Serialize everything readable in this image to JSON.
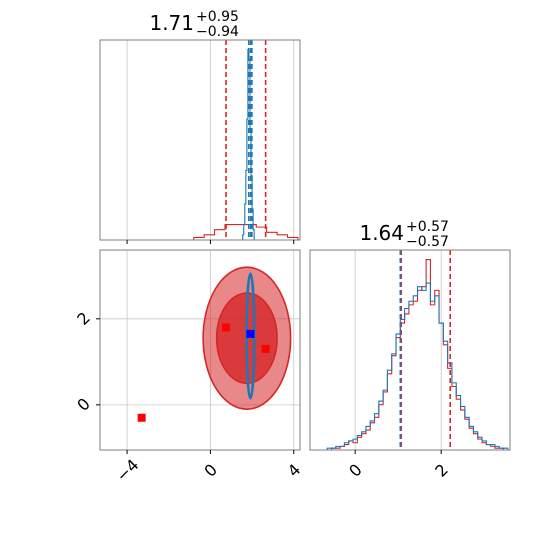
{
  "colors": {
    "series_a": "#d62728",
    "series_b": "#1f77b4",
    "marker_a": "#ff0000",
    "marker_b": "#0000ff",
    "grid": "#c8c8c8",
    "axis": "#7f7f7f"
  },
  "chart_data": [
    {
      "type": "histogram",
      "panel": "top-left marginal",
      "grid": true,
      "xlim": [
        -5.3,
        4.3
      ],
      "x_ticks": [
        -4,
        0,
        4
      ],
      "summary": {
        "median": "1.71",
        "plus": "+0.95",
        "minus": "−0.94"
      },
      "series": [
        {
          "color": "series_a",
          "bin_edges": [
            -5.3,
            -4.8,
            -4.3,
            -3.8,
            -3.3,
            -2.8,
            -2.3,
            -1.8,
            -1.3,
            -0.8,
            -0.3,
            0.2,
            0.7,
            1.2,
            1.7,
            2.2,
            2.7,
            3.2,
            3.7,
            4.2
          ],
          "counts": [
            0,
            0,
            0,
            0,
            0,
            0,
            0,
            0,
            0,
            1,
            2,
            4,
            6,
            6,
            6,
            5,
            3,
            2,
            1
          ],
          "quantile_lines": [
            0.75,
            2.65
          ]
        },
        {
          "color": "series_b",
          "bin_edges": [
            1.55,
            1.6,
            1.65,
            1.7,
            1.75,
            1.8,
            1.85,
            1.9,
            1.95,
            2.0,
            2.05,
            2.1
          ],
          "counts": [
            2,
            6,
            14,
            27,
            47,
            74,
            70,
            42,
            25,
            12,
            4
          ],
          "quantile_lines": [
            1.84,
            1.93,
            1.99
          ]
        }
      ]
    },
    {
      "type": "contour",
      "panel": "bottom-left joint",
      "grid": true,
      "xlim": [
        -5.3,
        4.3
      ],
      "ylim": [
        -1.05,
        3.6
      ],
      "x_ticks": [
        -4,
        0,
        4
      ],
      "y_ticks": [
        0,
        2
      ],
      "series": [
        {
          "color": "series_a",
          "center": [
            1.75,
            1.55
          ],
          "levels": [
            {
              "rx": 2.1,
              "ry": 1.65,
              "fill": 0.55
            },
            {
              "rx": 1.45,
              "ry": 1.05,
              "fill": 0.8
            }
          ]
        },
        {
          "color": "series_b",
          "center": [
            1.92,
            1.6
          ],
          "levels": [
            {
              "rx": 0.18,
              "ry": 1.45,
              "fill": 0
            }
          ]
        }
      ],
      "points": [
        {
          "color": "marker_a",
          "x": 0.75,
          "y": 1.8
        },
        {
          "color": "marker_a",
          "x": 2.65,
          "y": 1.3
        },
        {
          "color": "marker_a",
          "x": -3.3,
          "y": -0.3
        },
        {
          "color": "marker_b",
          "x": 1.92,
          "y": 1.65
        }
      ]
    },
    {
      "type": "histogram",
      "panel": "bottom-right marginal",
      "grid": true,
      "xlim": [
        -1.05,
        3.6
      ],
      "x_ticks": [
        0,
        2
      ],
      "summary": {
        "median": "1.64",
        "plus": "+0.57",
        "minus": "−0.57"
      },
      "series": [
        {
          "color": "series_a",
          "bin_edges": [
            -1.05,
            -0.95,
            -0.85,
            -0.75,
            -0.65,
            -0.55,
            -0.45,
            -0.35,
            -0.25,
            -0.15,
            -0.05,
            0.05,
            0.15,
            0.25,
            0.35,
            0.45,
            0.55,
            0.65,
            0.75,
            0.85,
            0.95,
            1.05,
            1.15,
            1.25,
            1.35,
            1.45,
            1.55,
            1.65,
            1.75,
            1.85,
            1.95,
            2.05,
            2.15,
            2.25,
            2.35,
            2.45,
            2.55,
            2.65,
            2.75,
            2.85,
            2.95,
            3.05,
            3.15,
            3.25,
            3.35,
            3.45,
            3.55
          ],
          "counts": [
            0,
            0,
            0,
            0,
            0,
            1,
            1,
            2,
            3,
            5,
            4,
            7,
            9,
            11,
            15,
            18,
            25,
            32,
            42,
            52,
            62,
            70,
            75,
            80,
            82,
            88,
            90,
            105,
            80,
            88,
            70,
            58,
            45,
            35,
            28,
            22,
            17,
            12,
            9,
            6,
            4,
            3,
            2,
            1,
            1,
            0
          ],
          "quantile_lines": [
            1.07,
            2.21
          ]
        },
        {
          "color": "series_b",
          "bin_edges": [
            -1.05,
            -0.95,
            -0.85,
            -0.75,
            -0.65,
            -0.55,
            -0.45,
            -0.35,
            -0.25,
            -0.15,
            -0.05,
            0.05,
            0.15,
            0.25,
            0.35,
            0.45,
            0.55,
            0.65,
            0.75,
            0.85,
            0.95,
            1.05,
            1.15,
            1.25,
            1.35,
            1.45,
            1.55,
            1.65,
            1.75,
            1.85,
            1.95,
            2.05,
            2.15,
            2.25,
            2.35,
            2.45,
            2.55,
            2.65,
            2.75,
            2.85,
            2.95,
            3.05,
            3.15,
            3.25,
            3.35,
            3.45,
            3.55
          ],
          "counts": [
            0,
            0,
            0,
            0,
            1,
            1,
            2,
            2,
            4,
            5,
            6,
            8,
            10,
            13,
            16,
            20,
            27,
            33,
            44,
            53,
            64,
            72,
            78,
            82,
            85,
            90,
            88,
            92,
            82,
            85,
            70,
            60,
            48,
            37,
            30,
            24,
            18,
            13,
            10,
            7,
            5,
            3,
            3,
            2,
            1,
            1
          ],
          "quantile_lines": [
            1.05
          ]
        }
      ]
    }
  ]
}
